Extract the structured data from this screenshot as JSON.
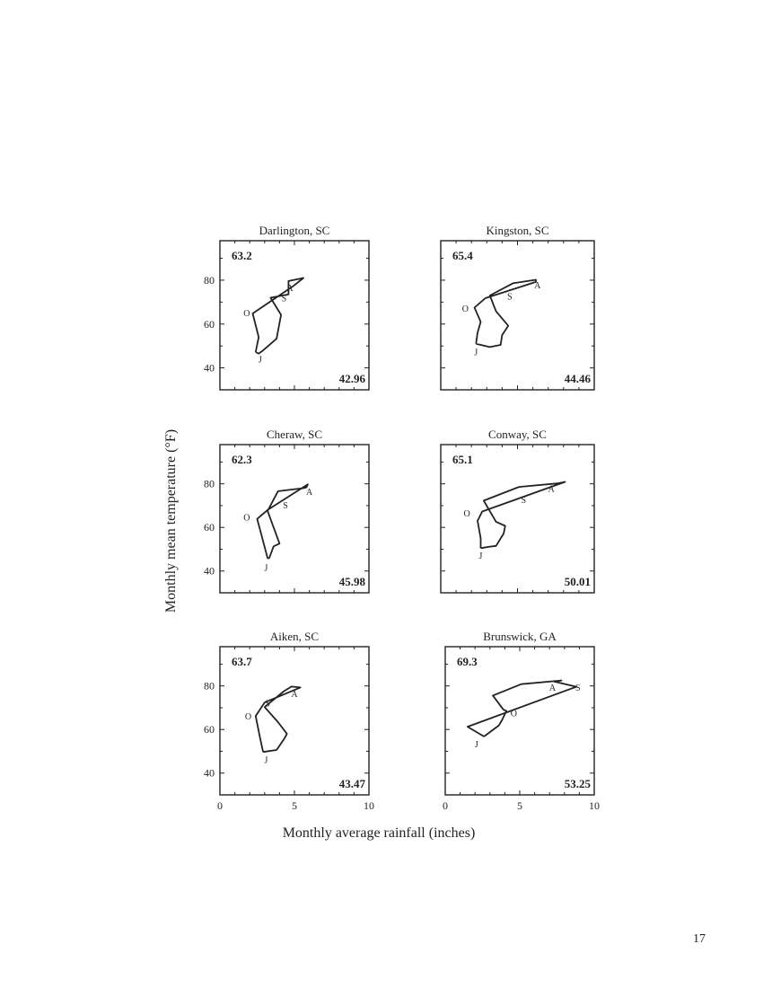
{
  "page": {
    "page_number": "17"
  },
  "chart_data": {
    "type": "line",
    "xlabel": "Monthly average rainfall (inches)",
    "ylabel": "Monthly mean temperature (°F)",
    "xlim": [
      0,
      10
    ],
    "ylim": [
      30,
      98
    ],
    "x_ticks": [
      "0",
      "5",
      "10"
    ],
    "y_ticks": [
      "40",
      "60",
      "80"
    ],
    "panels": [
      {
        "title": "Darlington, SC",
        "mean_temperature": "63.2",
        "annual_rainfall": "42.96",
        "month_labels": [
          {
            "text": "A",
            "x": 4.7,
            "y": 76.3
          },
          {
            "text": "S",
            "x": 4.3,
            "y": 71.6
          },
          {
            "text": "O",
            "x": 1.8,
            "y": 64.8
          },
          {
            "text": "J",
            "x": 2.7,
            "y": 43.8
          }
        ],
        "points": [
          [
            2.4,
            47.2
          ],
          [
            2.6,
            46.5
          ],
          [
            2.9,
            48.0
          ],
          [
            3.8,
            53.3
          ],
          [
            4.1,
            64.2
          ],
          [
            3.4,
            72.0
          ],
          [
            4.6,
            73.5
          ],
          [
            4.6,
            79.6
          ],
          [
            5.6,
            81.0
          ],
          [
            4.9,
            77.2
          ],
          [
            2.2,
            64.8
          ],
          [
            2.6,
            54.0
          ],
          [
            2.4,
            47.2
          ]
        ]
      },
      {
        "title": "Kingston, SC",
        "mean_temperature": "65.4",
        "annual_rainfall": "44.46",
        "month_labels": [
          {
            "text": "A",
            "x": 6.3,
            "y": 77.6
          },
          {
            "text": "S",
            "x": 4.5,
            "y": 72.3
          },
          {
            "text": "O",
            "x": 1.6,
            "y": 66.8
          },
          {
            "text": "J",
            "x": 2.3,
            "y": 47.0
          }
        ],
        "points": [
          [
            2.3,
            51.0
          ],
          [
            3.2,
            49.5
          ],
          [
            3.9,
            50.5
          ],
          [
            4.0,
            55.0
          ],
          [
            4.4,
            59.2
          ],
          [
            3.6,
            65.8
          ],
          [
            3.2,
            73.0
          ],
          [
            4.7,
            78.6
          ],
          [
            6.2,
            80.2
          ],
          [
            6.2,
            79.2
          ],
          [
            2.9,
            71.8
          ],
          [
            2.2,
            67.5
          ],
          [
            2.6,
            61.0
          ],
          [
            2.4,
            56.0
          ],
          [
            2.3,
            51.0
          ]
        ]
      },
      {
        "title": "Cheraw, SC",
        "mean_temperature": "62.3",
        "annual_rainfall": "45.98",
        "month_labels": [
          {
            "text": "A",
            "x": 6.0,
            "y": 76.1
          },
          {
            "text": "S",
            "x": 4.4,
            "y": 69.9
          },
          {
            "text": "O",
            "x": 1.8,
            "y": 64.5
          },
          {
            "text": "J",
            "x": 3.1,
            "y": 41.3
          }
        ],
        "points": [
          [
            3.3,
            45.8
          ],
          [
            3.6,
            51.3
          ],
          [
            4.0,
            52.6
          ],
          [
            3.5,
            61.9
          ],
          [
            3.2,
            67.6
          ],
          [
            3.9,
            76.6
          ],
          [
            5.6,
            78.0
          ],
          [
            5.8,
            78.4
          ],
          [
            5.9,
            79.8
          ],
          [
            3.2,
            68.0
          ],
          [
            2.5,
            63.9
          ],
          [
            3.2,
            45.9
          ],
          [
            3.3,
            45.8
          ]
        ]
      },
      {
        "title": "Conway, SC",
        "mean_temperature": "65.1",
        "annual_rainfall": "50.01",
        "month_labels": [
          {
            "text": "A",
            "x": 7.2,
            "y": 77.5
          },
          {
            "text": "S",
            "x": 5.4,
            "y": 72.4
          },
          {
            "text": "O",
            "x": 1.7,
            "y": 66.2
          },
          {
            "text": "J",
            "x": 2.6,
            "y": 47.0
          }
        ],
        "points": [
          [
            2.6,
            50.5
          ],
          [
            3.2,
            51.2
          ],
          [
            3.6,
            51.5
          ],
          [
            4.1,
            57.2
          ],
          [
            4.2,
            60.7
          ],
          [
            3.6,
            62.6
          ],
          [
            2.8,
            72.3
          ],
          [
            5.1,
            78.6
          ],
          [
            7.6,
            80.2
          ],
          [
            8.1,
            80.9
          ],
          [
            2.7,
            67.3
          ],
          [
            2.4,
            63.0
          ],
          [
            2.6,
            55.0
          ],
          [
            2.6,
            50.5
          ]
        ]
      },
      {
        "title": "Aiken, SC",
        "mean_temperature": "63.7",
        "annual_rainfall": "43.47",
        "month_labels": [
          {
            "text": "A",
            "x": 5.0,
            "y": 76.2
          },
          {
            "text": "S",
            "x": 3.2,
            "y": 71.8
          },
          {
            "text": "O",
            "x": 1.9,
            "y": 65.8
          },
          {
            "text": "J",
            "x": 3.1,
            "y": 45.8
          }
        ],
        "points": [
          [
            2.9,
            49.7
          ],
          [
            3.8,
            50.6
          ],
          [
            4.3,
            55.6
          ],
          [
            4.5,
            58.0
          ],
          [
            3.9,
            63.4
          ],
          [
            3.0,
            70.3
          ],
          [
            4.3,
            77.6
          ],
          [
            4.8,
            79.7
          ],
          [
            5.4,
            79.3
          ],
          [
            3.0,
            72.4
          ],
          [
            2.4,
            66.2
          ],
          [
            2.7,
            56.0
          ],
          [
            2.9,
            49.7
          ]
        ]
      },
      {
        "title": "Brunswick, GA",
        "mean_temperature": "69.3",
        "annual_rainfall": "53.25",
        "month_labels": [
          {
            "text": "A",
            "x": 7.2,
            "y": 79.0
          },
          {
            "text": "S",
            "x": 8.9,
            "y": 79.0
          },
          {
            "text": "O",
            "x": 4.6,
            "y": 67.2
          },
          {
            "text": "J",
            "x": 2.1,
            "y": 53.0
          }
        ],
        "points": [
          [
            2.6,
            56.8
          ],
          [
            3.6,
            61.9
          ],
          [
            3.8,
            64.2
          ],
          [
            4.1,
            68.5
          ],
          [
            3.9,
            69.2
          ],
          [
            3.2,
            75.6
          ],
          [
            5.1,
            80.8
          ],
          [
            7.8,
            82.5
          ],
          [
            7.3,
            82.0
          ],
          [
            8.8,
            79.6
          ],
          [
            1.5,
            61.3
          ],
          [
            2.6,
            56.8
          ]
        ]
      }
    ]
  }
}
